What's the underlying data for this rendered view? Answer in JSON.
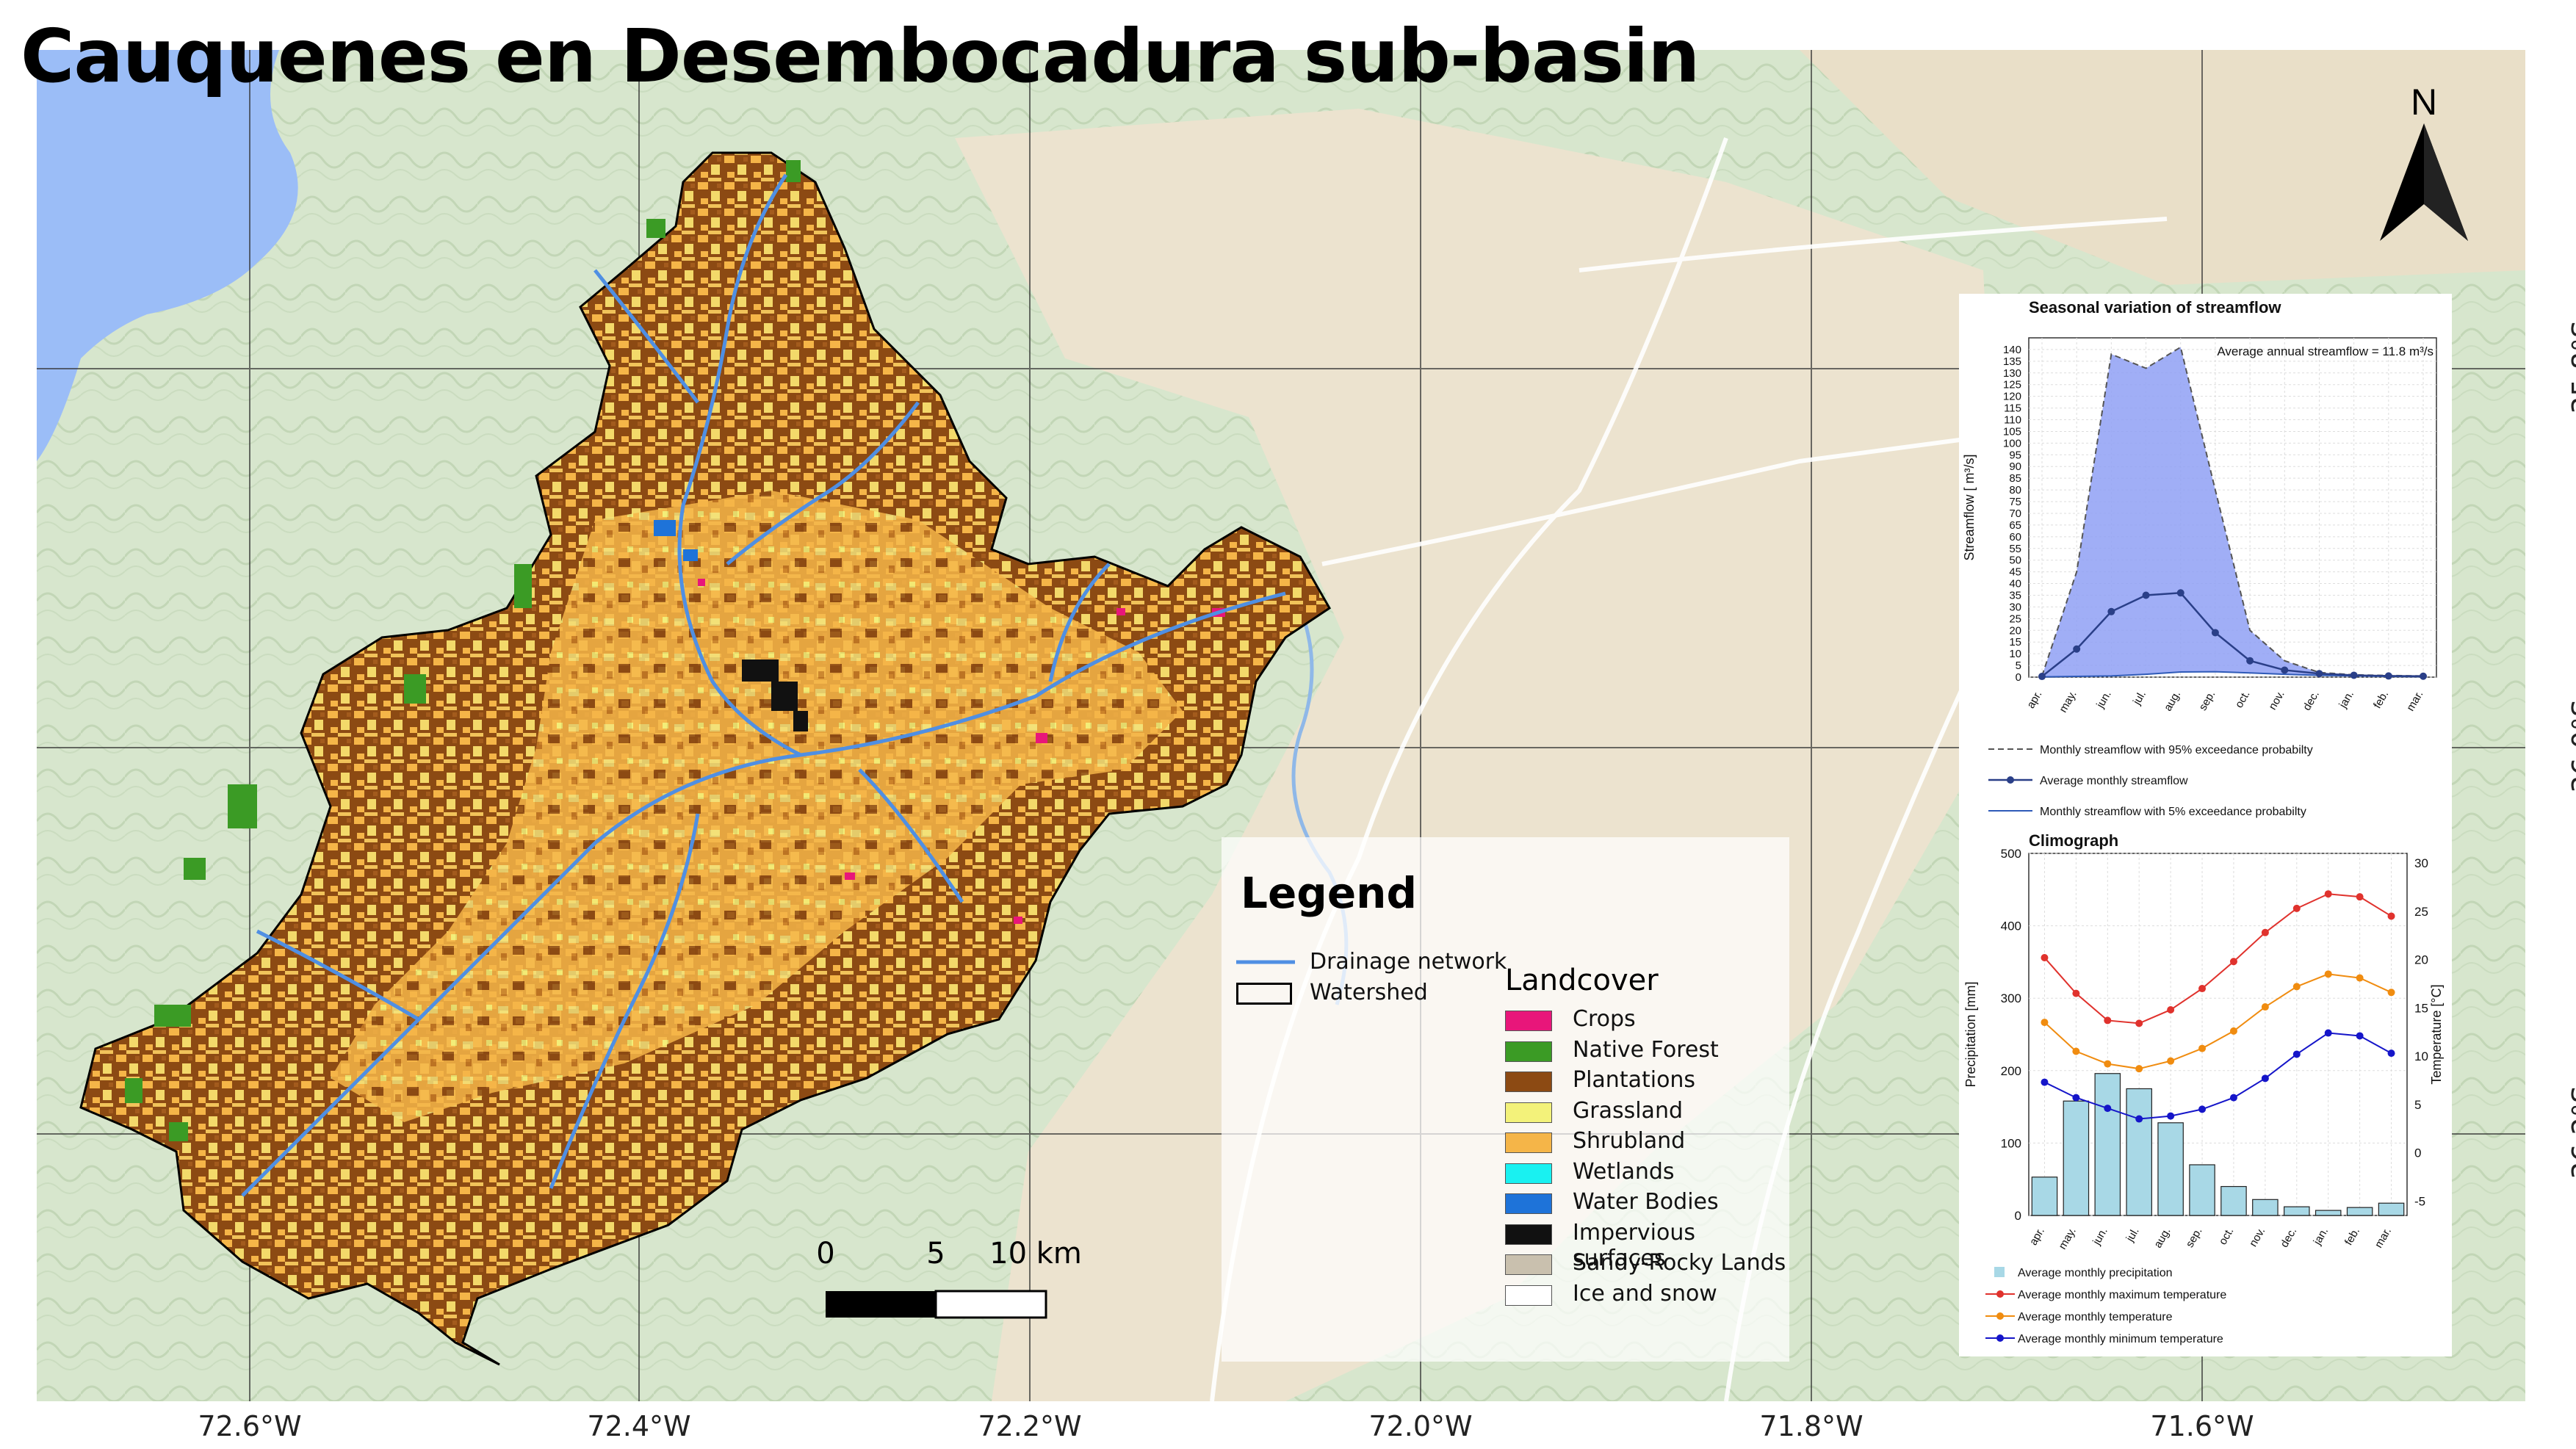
{
  "title": "Cauquenes en Desembocadura sub-basin",
  "north_label": "N",
  "longitude_labels": [
    "72.6°W",
    "72.4°W",
    "72.2°W",
    "72.0°W",
    "71.8°W",
    "71.6°W"
  ],
  "latitude_labels": [
    "35.8°S",
    "36.0°S",
    "36.2°S"
  ],
  "scale": {
    "labels": [
      "0",
      "5",
      "10 km"
    ]
  },
  "legend": {
    "title": "Legend",
    "drainage_label": "Drainage network",
    "watershed_label": "Watershed",
    "landcover_title": "Landcover",
    "classes": [
      {
        "label": "Crops",
        "color": "#e8167a"
      },
      {
        "label": "Native Forest",
        "color": "#3b9b25"
      },
      {
        "label": "Plantations",
        "color": "#8c4a13"
      },
      {
        "label": "Grassland",
        "color": "#f3f27a"
      },
      {
        "label": "Shrubland",
        "color": "#f5b548"
      },
      {
        "label": "Wetlands",
        "color": "#19f1f1"
      },
      {
        "label": "Water Bodies",
        "color": "#1e73d9"
      },
      {
        "label": "Impervious surfaces",
        "color": "#111111"
      },
      {
        "label": "Sandy-Rocky Lands",
        "color": "#c9c0ae"
      },
      {
        "label": "Ice and snow",
        "color": "#ffffff"
      }
    ]
  },
  "chart_data": [
    {
      "type": "area",
      "title": "Seasonal variation of streamflow",
      "annotation": "Average annual streamflow = 11.8 m³/s",
      "ylabel": "Streamflow  [ m³/s]",
      "ylim": [
        0,
        145
      ],
      "yticks": [
        0,
        5,
        10,
        15,
        20,
        25,
        30,
        35,
        40,
        45,
        50,
        55,
        60,
        65,
        70,
        75,
        80,
        85,
        90,
        95,
        100,
        105,
        110,
        115,
        120,
        125,
        130,
        135,
        140
      ],
      "categories": [
        "apr.",
        "may.",
        "jun.",
        "jul.",
        "aug.",
        "sep.",
        "oct.",
        "nov.",
        "dec.",
        "jan.",
        "feb.",
        "mar."
      ],
      "series": [
        {
          "name": "Monthly streamflow with 95% exceedance probabilty",
          "values": [
            0.5,
            45,
            138,
            132,
            141,
            80,
            20,
            7,
            2,
            1,
            0.7,
            0.5
          ]
        },
        {
          "name": "Average monthly streamflow",
          "values": [
            0.3,
            12,
            28,
            35,
            36,
            19,
            7,
            3,
            1.5,
            0.8,
            0.5,
            0.4
          ]
        },
        {
          "name": "Monthly streamflow with 5% exceedance probabilty",
          "values": [
            0.1,
            0.3,
            0.5,
            1.2,
            2.2,
            2.3,
            1.8,
            1.2,
            0.8,
            0.5,
            0.3,
            0.2
          ]
        }
      ],
      "colors": {
        "band": "#8fa0f5",
        "mean": "#2a3f88",
        "low": "#2e5ab8"
      }
    },
    {
      "type": "bar",
      "title": "Climograph",
      "ylabel": "Precipitation [mm]",
      "y2label": "Temperature [°C]",
      "ylim": [
        0,
        500
      ],
      "yticks": [
        0,
        100,
        200,
        300,
        400,
        500
      ],
      "y2lim": [
        -6.5,
        31
      ],
      "y2ticks": [
        -5,
        0,
        5,
        10,
        15,
        20,
        25,
        30
      ],
      "categories": [
        "apr.",
        "may.",
        "jun.",
        "jul.",
        "aug.",
        "sep.",
        "oct.",
        "nov.",
        "dec.",
        "jan.",
        "feb.",
        "mar."
      ],
      "series": [
        {
          "name": "Average monthly precipitation",
          "kind": "bar",
          "values": [
            53,
            158,
            196,
            175,
            128,
            70,
            40,
            22,
            12,
            7,
            11,
            17
          ],
          "color": "#a8d8e6"
        },
        {
          "name": "Average monthly maximum temperature",
          "kind": "line",
          "values": [
            20.2,
            16.5,
            13.7,
            13.4,
            14.8,
            17,
            19.8,
            22.8,
            25.3,
            26.8,
            26.5,
            24.5
          ],
          "color": "#e0322d"
        },
        {
          "name": "Average monthly temperature",
          "kind": "line",
          "values": [
            13.5,
            10.5,
            9.2,
            8.7,
            9.5,
            10.8,
            12.6,
            15.1,
            17.2,
            18.5,
            18.1,
            16.6
          ],
          "color": "#f08c10"
        },
        {
          "name": "Average monthly minimum temperature",
          "kind": "line",
          "values": [
            7.3,
            5.7,
            4.6,
            3.5,
            3.8,
            4.5,
            5.7,
            7.7,
            10.2,
            12.4,
            12.1,
            10.3
          ],
          "color": "#1515c9"
        }
      ]
    }
  ]
}
